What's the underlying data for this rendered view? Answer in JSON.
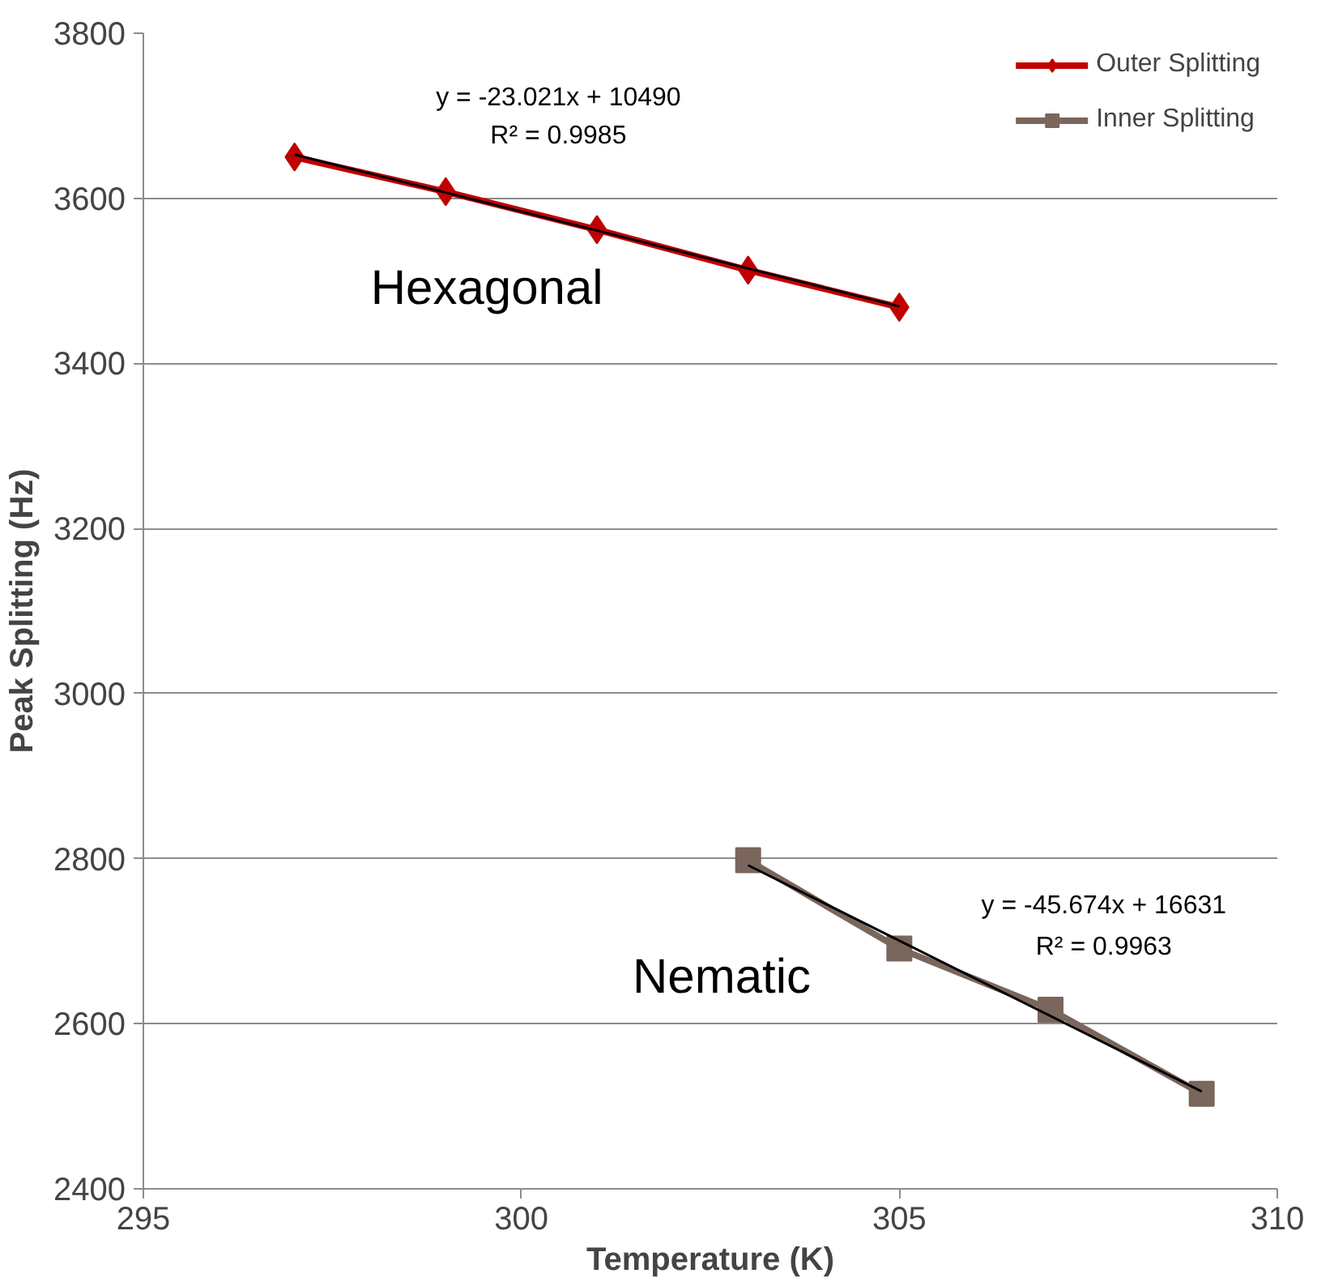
{
  "chart_data": {
    "type": "line",
    "xlabel": "Temperature (K)",
    "ylabel": "Peak Splitting (Hz)",
    "xlim": [
      295,
      310
    ],
    "xticks": [
      295,
      300,
      305,
      310
    ],
    "ylim": [
      2400,
      3800
    ],
    "yticks": [
      2400,
      2600,
      2800,
      3000,
      3200,
      3400,
      3600,
      3800
    ],
    "grid": "y",
    "legend": "top right",
    "series": [
      {
        "name": "Outer Splitting",
        "color": "#c00000",
        "marker": "diamond",
        "x": [
          297,
          299,
          301,
          303,
          305
        ],
        "values": [
          3650,
          3608,
          3562,
          3513,
          3468
        ]
      },
      {
        "name": "Inner Splitting",
        "color": "#7a665c",
        "marker": "square",
        "x": [
          303,
          305,
          307,
          309
        ],
        "values": [
          2798,
          2691,
          2617,
          2515
        ]
      },
      {
        "type": "line",
        "color": "#000000",
        "marker": "none",
        "x": [
          297,
          305
        ],
        "values": [
          3653,
          3469
        ]
      },
      {
        "type": "line",
        "color": "#000000",
        "marker": "none",
        "x": [
          303,
          309
        ],
        "values": [
          2792,
          2518
        ]
      }
    ],
    "annotations": [
      "y = -23.021x + 10490",
      "R² = 0.9985",
      "Hexagonal",
      "Nematic",
      "y = -45.674x + 16631",
      "R² = 0.9963"
    ]
  }
}
